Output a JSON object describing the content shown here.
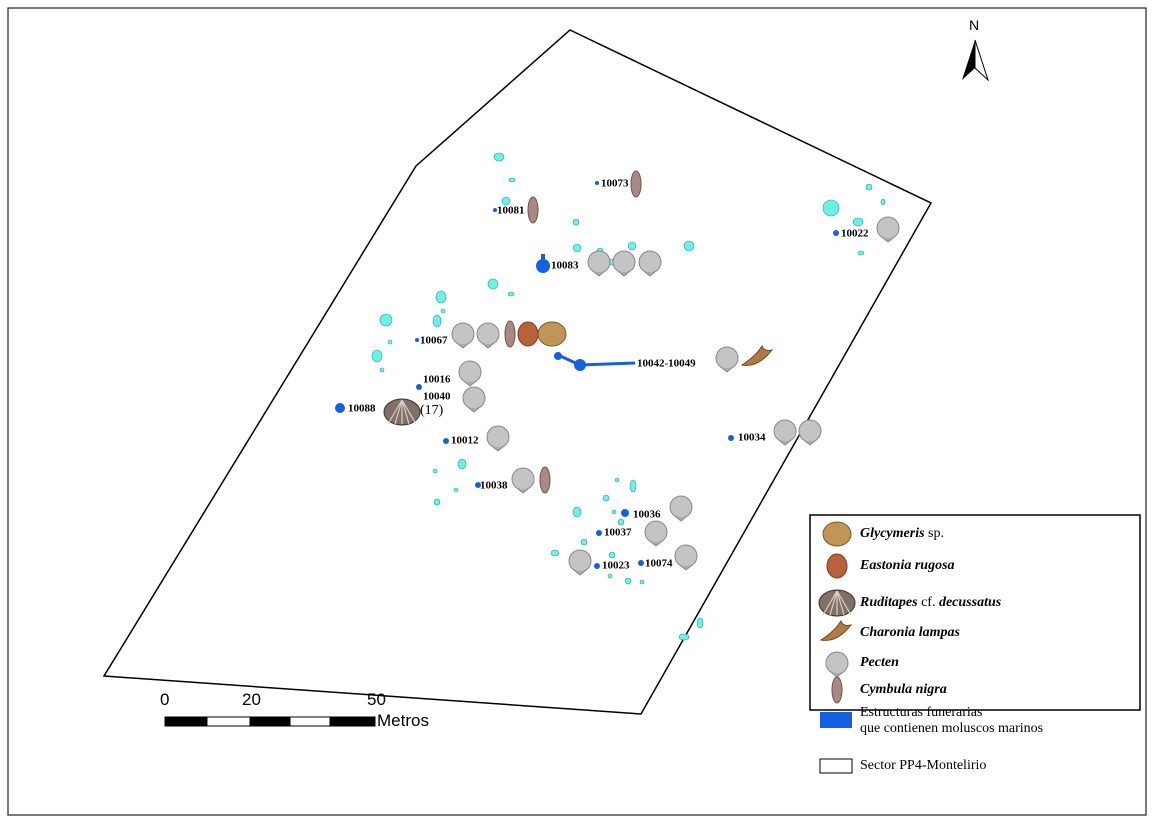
{
  "north": "N",
  "labels": [
    "10073",
    "10081",
    "10022",
    "10083",
    "10067",
    "10042-10049",
    "10016",
    "10040",
    "10088",
    "10012",
    "10034",
    "10038",
    "10036",
    "10037",
    "10023",
    "10074"
  ],
  "count_label": "(17)",
  "legend": {
    "items": [
      {
        "parts": [
          {
            "text": "Glycymeris",
            "italic": true
          },
          {
            "text": " sp."
          }
        ]
      },
      {
        "parts": [
          {
            "text": "Eastonia rugosa",
            "italic": true
          }
        ]
      },
      {
        "parts": [
          {
            "text": "Ruditapes",
            "italic": true
          },
          {
            "text": " cf. "
          },
          {
            "text": "decussatus",
            "italic": true
          }
        ]
      },
      {
        "parts": [
          {
            "text": "Charonia lampas",
            "italic": true
          }
        ]
      },
      {
        "parts": [
          {
            "text": "Pecten",
            "italic": true
          }
        ]
      },
      {
        "parts": [
          {
            "text": "Cymbula nigra",
            "italic": true
          }
        ]
      },
      {
        "lines": [
          "Estructuras funerarias",
          "que contienen moluscos marinos"
        ]
      },
      {
        "parts": [
          {
            "text": "Sector PP4-Montelirio"
          }
        ]
      }
    ]
  },
  "scale": {
    "ticks": [
      "0",
      "20",
      "50"
    ],
    "unit": "Metros"
  }
}
